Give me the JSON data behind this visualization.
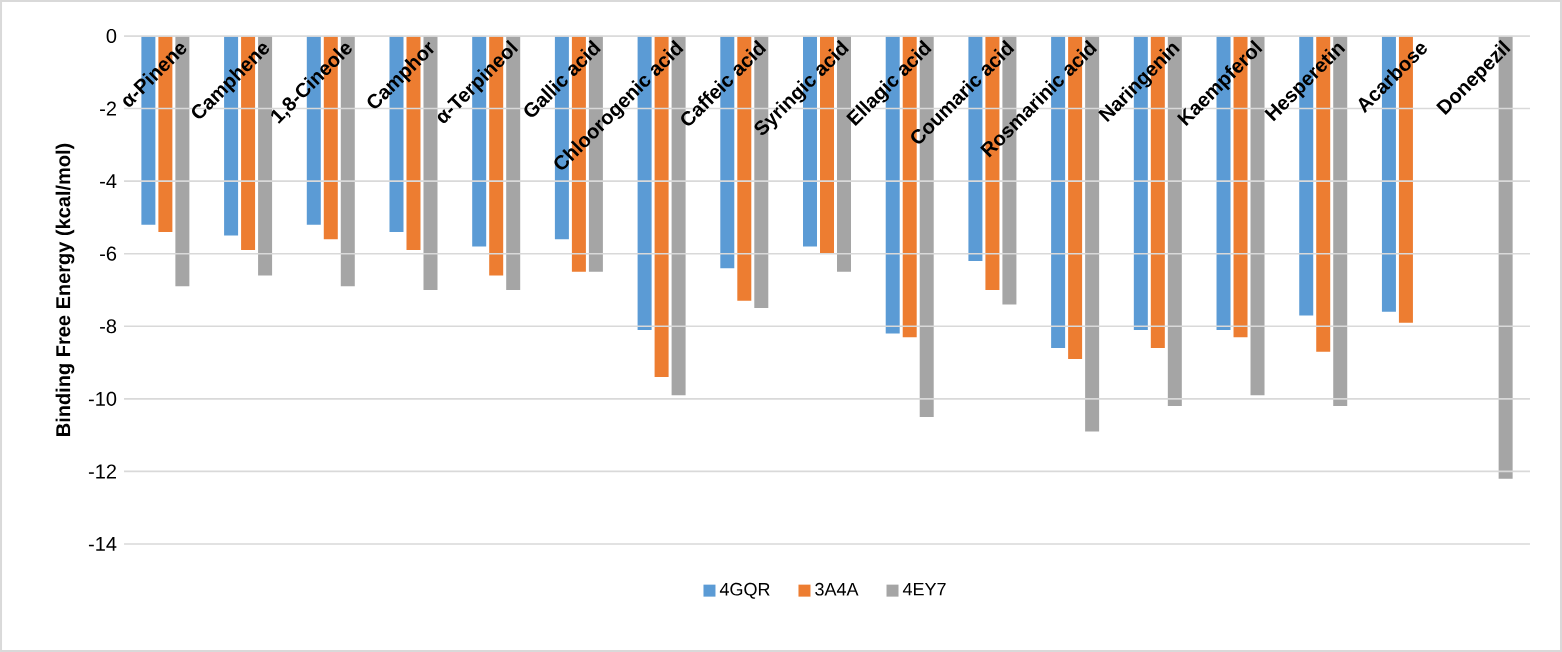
{
  "chart_data": {
    "type": "bar",
    "ylabel": "Binding Free Energy (kcal/mol)",
    "categories": [
      "α-Pinene",
      "Camphene",
      "1,8-Cineole",
      "Camphor",
      "α-Terpineol",
      "Gallic acid",
      "Chloorogenic acid",
      "Caffeic acid",
      "Syringic acid",
      "Ellagic acid",
      "Coumaric acid",
      "Rosmarinic acid",
      "Naringenin",
      "Kaempferol",
      "Hesperetin",
      "Acarbose",
      "Donepezil"
    ],
    "series": [
      {
        "name": "4GQR",
        "color": "#5b9bd5",
        "values": [
          -5.2,
          -5.5,
          -5.2,
          -5.4,
          -5.8,
          -5.6,
          -8.1,
          -6.4,
          -5.8,
          -8.2,
          -6.2,
          -8.6,
          -8.1,
          -8.1,
          -7.7,
          -7.6,
          null
        ]
      },
      {
        "name": "3A4A",
        "color": "#ed7d31",
        "values": [
          -5.4,
          -5.9,
          -5.6,
          -5.9,
          -6.6,
          -6.5,
          -9.4,
          -7.3,
          -6.0,
          -8.3,
          -7.0,
          -8.9,
          -8.6,
          -8.3,
          -8.7,
          -7.9,
          null
        ]
      },
      {
        "name": "4EY7",
        "color": "#a5a5a5",
        "values": [
          -6.9,
          -6.6,
          -6.9,
          -7.0,
          -7.0,
          -6.5,
          -9.9,
          -7.5,
          -6.5,
          -10.5,
          -7.4,
          -10.9,
          -10.2,
          -9.9,
          -10.2,
          null,
          -12.2
        ]
      }
    ],
    "ylim": [
      -14,
      0
    ],
    "yticks": [
      -14,
      -12,
      -10,
      -8,
      -6,
      -4,
      -2,
      0
    ],
    "grid": "y",
    "legend": "bottom"
  }
}
